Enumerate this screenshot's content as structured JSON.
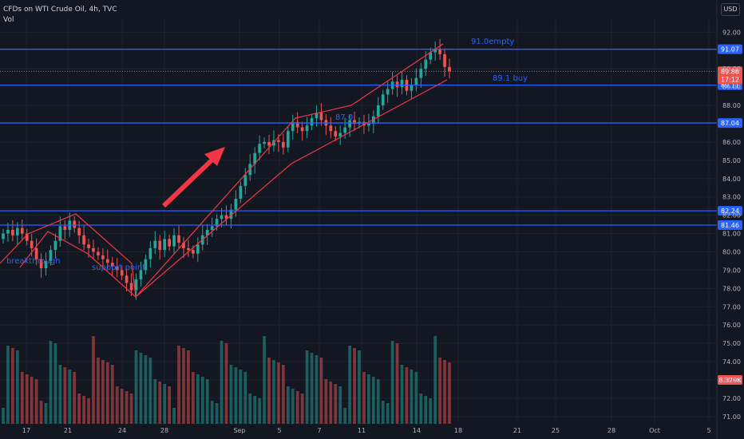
{
  "header": {
    "symbol_line": "CFDs on WTI Crude Oil, 4h, TVC",
    "volume_label": "Vol",
    "currency": "USD"
  },
  "colors": {
    "background": "#131722",
    "grid": "#1e222d",
    "up": "#26a69a",
    "down": "#ef5350",
    "level_line": "#2962ff",
    "annotation_red": "#f23645",
    "text": "#b2b5be"
  },
  "chart_data": {
    "type": "candlestick",
    "title": "",
    "ylim": [
      70.6,
      92.8
    ],
    "y_ticks": [
      92,
      90,
      89,
      88,
      86,
      85,
      84,
      83,
      82,
      81,
      80,
      79,
      78,
      77,
      76,
      75,
      74,
      73,
      72,
      71
    ],
    "x_ticks": [
      "17",
      "21",
      "24",
      "28",
      "Sep",
      "5",
      "7",
      "11",
      "14",
      "18",
      "21",
      "25",
      "28",
      "Oct",
      "5"
    ],
    "price_levels": [
      {
        "value": 91.07,
        "label": "91.07"
      },
      {
        "value": 89.11,
        "label": "89.11"
      },
      {
        "value": 87.04,
        "label": "87.04"
      },
      {
        "value": 82.24,
        "label": "82.24"
      },
      {
        "value": 81.46,
        "label": "81.46"
      }
    ],
    "last_price": {
      "value": 89.86,
      "countdown": "17:12"
    },
    "volume_label": "8.379K",
    "annotations": [
      {
        "text": "91.0empty"
      },
      {
        "text": "89.1 buy"
      },
      {
        "text": "87.0"
      },
      {
        "text": "breakthrough"
      },
      {
        "text": "support point"
      }
    ],
    "series_close": [
      81.0,
      81.2,
      80.9,
      81.3,
      81.0,
      80.6,
      80.2,
      79.6,
      79.1,
      79.5,
      80.1,
      80.6,
      81.4,
      81.2,
      81.7,
      81.3,
      80.9,
      80.4,
      80.2,
      80.0,
      79.8,
      79.6,
      79.4,
      79.2,
      79.0,
      78.7,
      78.3,
      77.9,
      78.5,
      79.0,
      79.6,
      80.2,
      80.6,
      80.1,
      80.7,
      80.3,
      80.9,
      80.5,
      80.2,
      80.1,
      79.9,
      80.4,
      80.9,
      81.2,
      81.4,
      81.8,
      82.0,
      81.8,
      82.3,
      82.9,
      83.6,
      84.2,
      84.8,
      85.4,
      85.9,
      86.0,
      85.8,
      86.1,
      86.0,
      85.7,
      86.6,
      87.1,
      86.8,
      86.6,
      86.9,
      87.3,
      87.6,
      87.2,
      86.9,
      86.6,
      86.3,
      86.5,
      86.8,
      87.2,
      87.0,
      87.1,
      86.9,
      87.0,
      87.4,
      88.0,
      88.6,
      88.9,
      89.3,
      89.0,
      89.4,
      88.8,
      89.1,
      89.5,
      90.0,
      90.5,
      90.9,
      91.1,
      90.8,
      90.1,
      89.86
    ]
  }
}
